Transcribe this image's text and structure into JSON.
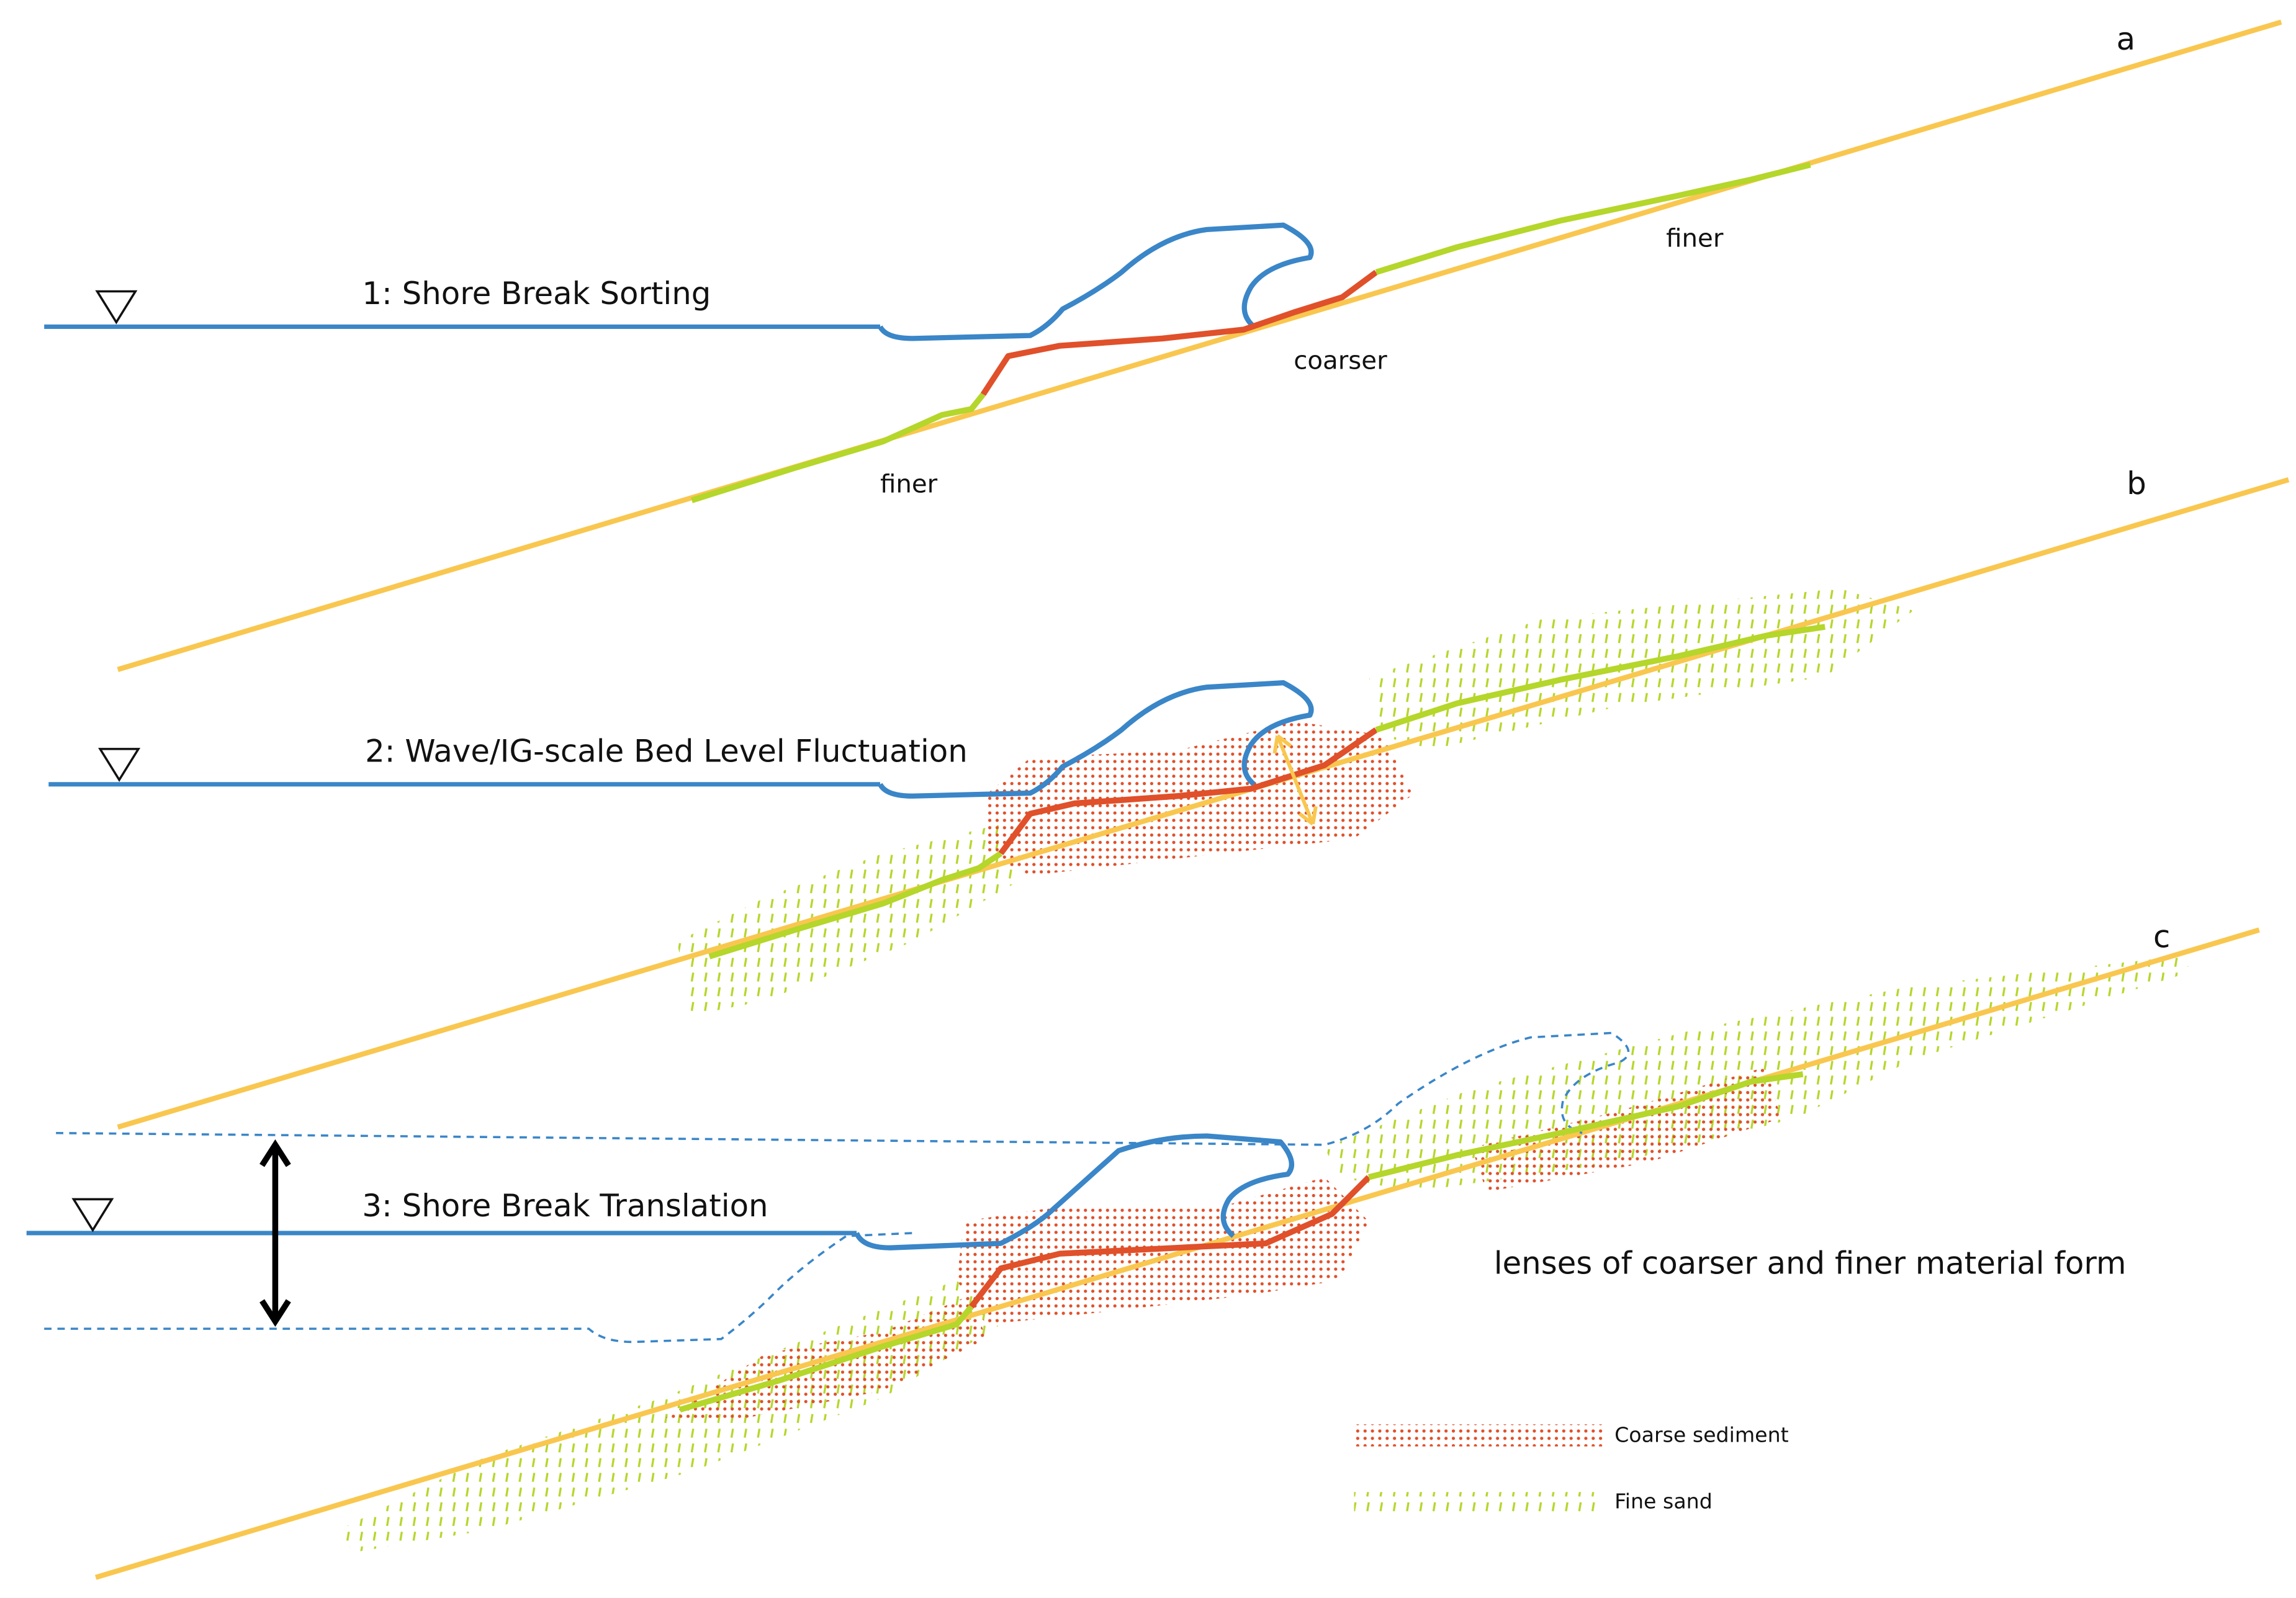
{
  "panels": [
    {
      "letter": "a",
      "title": "1: Shore Break Sorting",
      "labels": [
        "finer",
        "coarser",
        "finer"
      ]
    },
    {
      "letter": "b",
      "title": "2: Wave/IG-scale Bed Level Fluctuation"
    },
    {
      "letter": "c",
      "title": "3: Shore Break Translation",
      "note": "lenses of coarser and finer material form"
    }
  ],
  "legend": [
    {
      "label": "Coarse sediment"
    },
    {
      "label": "Fine sand"
    }
  ]
}
